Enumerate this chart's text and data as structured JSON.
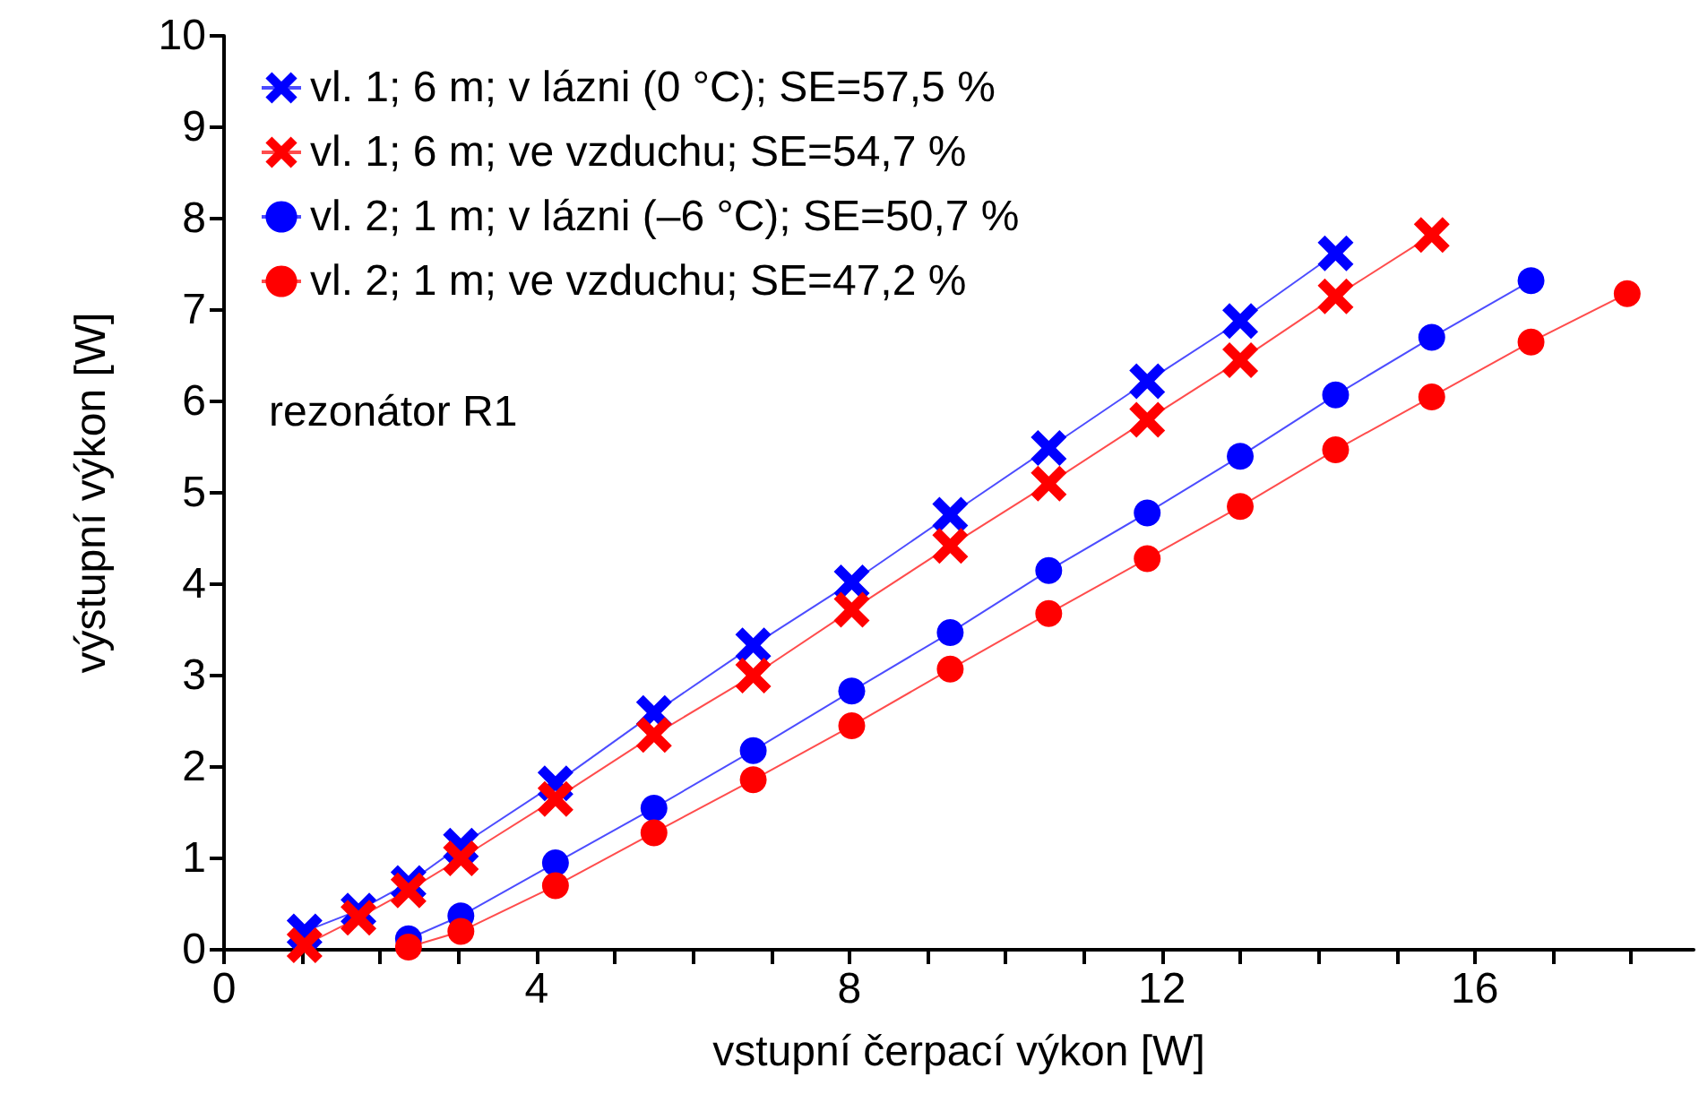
{
  "chart_data": {
    "type": "line",
    "xlabel": "vstupní čerpací výkon [W]",
    "ylabel": "výstupní výkon [W]",
    "annotations": [
      "rezonátor R1"
    ],
    "xlim": [
      0,
      18.8
    ],
    "xticks": [
      0,
      {
        "value": 1,
        "label": null
      },
      {
        "value": 2,
        "label": null
      },
      {
        "value": 3,
        "label": null
      },
      4,
      {
        "value": 5,
        "label": null
      },
      {
        "value": 6,
        "label": null
      },
      {
        "value": 7,
        "label": null
      },
      8,
      {
        "value": 9,
        "label": null
      },
      {
        "value": 10,
        "label": null
      },
      {
        "value": 11,
        "label": null
      },
      12,
      {
        "value": 13,
        "label": null
      },
      {
        "value": 14,
        "label": null
      },
      {
        "value": 15,
        "label": null
      },
      16,
      {
        "value": 17,
        "label": null
      },
      {
        "value": 18,
        "label": null
      }
    ],
    "ylim": [
      0,
      10
    ],
    "yticks": [
      0,
      1,
      2,
      3,
      4,
      5,
      6,
      7,
      8,
      9,
      10
    ],
    "grid": false,
    "legend": "top left",
    "line_style": "solid",
    "series": [
      {
        "name": "vl. 1; 6 m; v lázni (0 °C); SE=57,5 %",
        "color": "#0000ff",
        "marker": "cross",
        "x": [
          1.03,
          1.72,
          2.36,
          3.03,
          4.24,
          5.5,
          6.77,
          8.03,
          9.29,
          10.55,
          11.81,
          13.0,
          14.22
        ],
        "values": [
          0.2,
          0.43,
          0.73,
          1.14,
          1.82,
          2.59,
          3.33,
          4.02,
          4.76,
          5.49,
          6.22,
          6.88,
          7.62
        ]
      },
      {
        "name": "vl. 1; 6 m; ve vzduchu; SE=54,7 %",
        "color": "#ff0000",
        "marker": "cross",
        "x": [
          1.03,
          1.72,
          2.36,
          3.03,
          4.24,
          5.5,
          6.77,
          8.03,
          9.29,
          10.55,
          11.81,
          13.0,
          14.22,
          15.45
        ],
        "values": [
          0.05,
          0.35,
          0.65,
          1.0,
          1.65,
          2.35,
          3.0,
          3.72,
          4.42,
          5.1,
          5.8,
          6.45,
          7.15,
          7.82
        ]
      },
      {
        "name": "vl. 2; 1 m; v lázni (–6 °C); SE=50,7 %",
        "color": "#0000ff",
        "marker": "circle",
        "x": [
          2.36,
          3.03,
          4.24,
          5.5,
          6.77,
          8.03,
          9.29,
          10.55,
          11.81,
          13.0,
          14.22,
          15.45,
          16.72
        ],
        "values": [
          0.12,
          0.37,
          0.95,
          1.55,
          2.18,
          2.83,
          3.47,
          4.15,
          4.78,
          5.4,
          6.07,
          6.7,
          7.32
        ]
      },
      {
        "name": "vl. 2; 1 m; ve vzduchu; SE=47,2 %",
        "color": "#ff0000",
        "marker": "circle",
        "x": [
          2.36,
          3.03,
          4.24,
          5.5,
          6.77,
          8.03,
          9.29,
          10.55,
          11.81,
          13.0,
          14.22,
          15.45,
          16.72,
          17.95
        ],
        "values": [
          0.03,
          0.2,
          0.7,
          1.28,
          1.86,
          2.45,
          3.07,
          3.68,
          4.28,
          4.85,
          5.47,
          6.05,
          6.65,
          7.18
        ]
      }
    ]
  }
}
